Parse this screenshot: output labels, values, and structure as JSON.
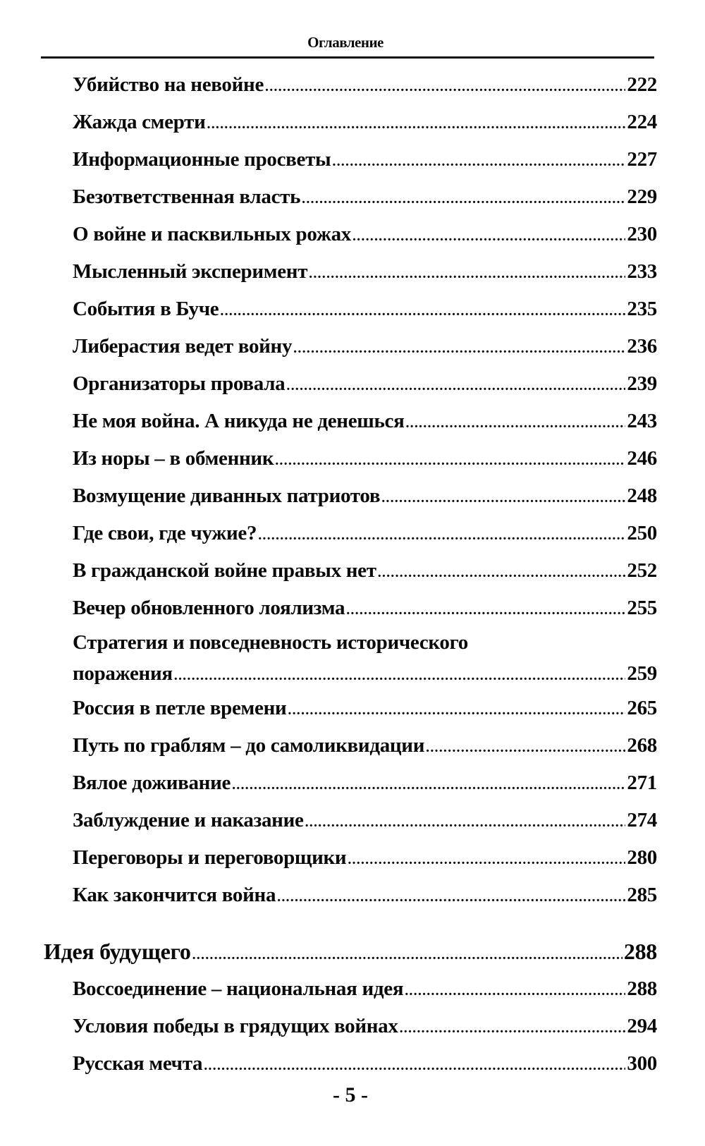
{
  "running_head": "Оглавление",
  "entries": [
    {
      "title": "Убийство на невойне",
      "page": "222"
    },
    {
      "title": "Жажда смерти",
      "page": "224"
    },
    {
      "title": "Информационные просветы",
      "page": "227"
    },
    {
      "title": "Безответственная власть",
      "page": "229"
    },
    {
      "title": "О войне и пасквильных рожах",
      "page": "230"
    },
    {
      "title": "Мысленный эксперимент",
      "page": "233"
    },
    {
      "title": "События в Буче",
      "page": "235"
    },
    {
      "title": "Либерастия ведет войну",
      "page": "236"
    },
    {
      "title": "Организаторы провала",
      "page": "239"
    },
    {
      "title": "Не моя война. А никуда не денешься",
      "page": "243"
    },
    {
      "title": "Из норы – в обменник",
      "page": "246"
    },
    {
      "title": "Возмущение диванных патриотов",
      "page": "248"
    },
    {
      "title": "Где свои, где чужие?",
      "page": "250"
    },
    {
      "title": "В гражданской войне правых нет",
      "page": "252"
    },
    {
      "title": "Вечер обновленного лоялизма",
      "page": "255"
    },
    {
      "title_lines": [
        "Стратегия и повседневность исторического",
        "поражения"
      ],
      "page": "259"
    },
    {
      "title": "Россия в петле времени",
      "page": "265"
    },
    {
      "title": "Путь по граблям – до самоликвидации",
      "page": "268"
    },
    {
      "title": "Вялое доживание",
      "page": "271"
    },
    {
      "title": "Заблуждение и наказание",
      "page": "274"
    },
    {
      "title": "Переговоры и переговорщики",
      "page": "280"
    },
    {
      "title": "Как закончится война",
      "page": "285"
    },
    {
      "title": "Идея будущего",
      "page": "288",
      "level": "part"
    },
    {
      "title": "Воссоединение – национальная идея",
      "page": "288"
    },
    {
      "title": "Условия победы в грядущих войнах",
      "page": "294"
    },
    {
      "title": "Русская мечта",
      "page": "300"
    }
  ],
  "page_number": "- 5 -"
}
